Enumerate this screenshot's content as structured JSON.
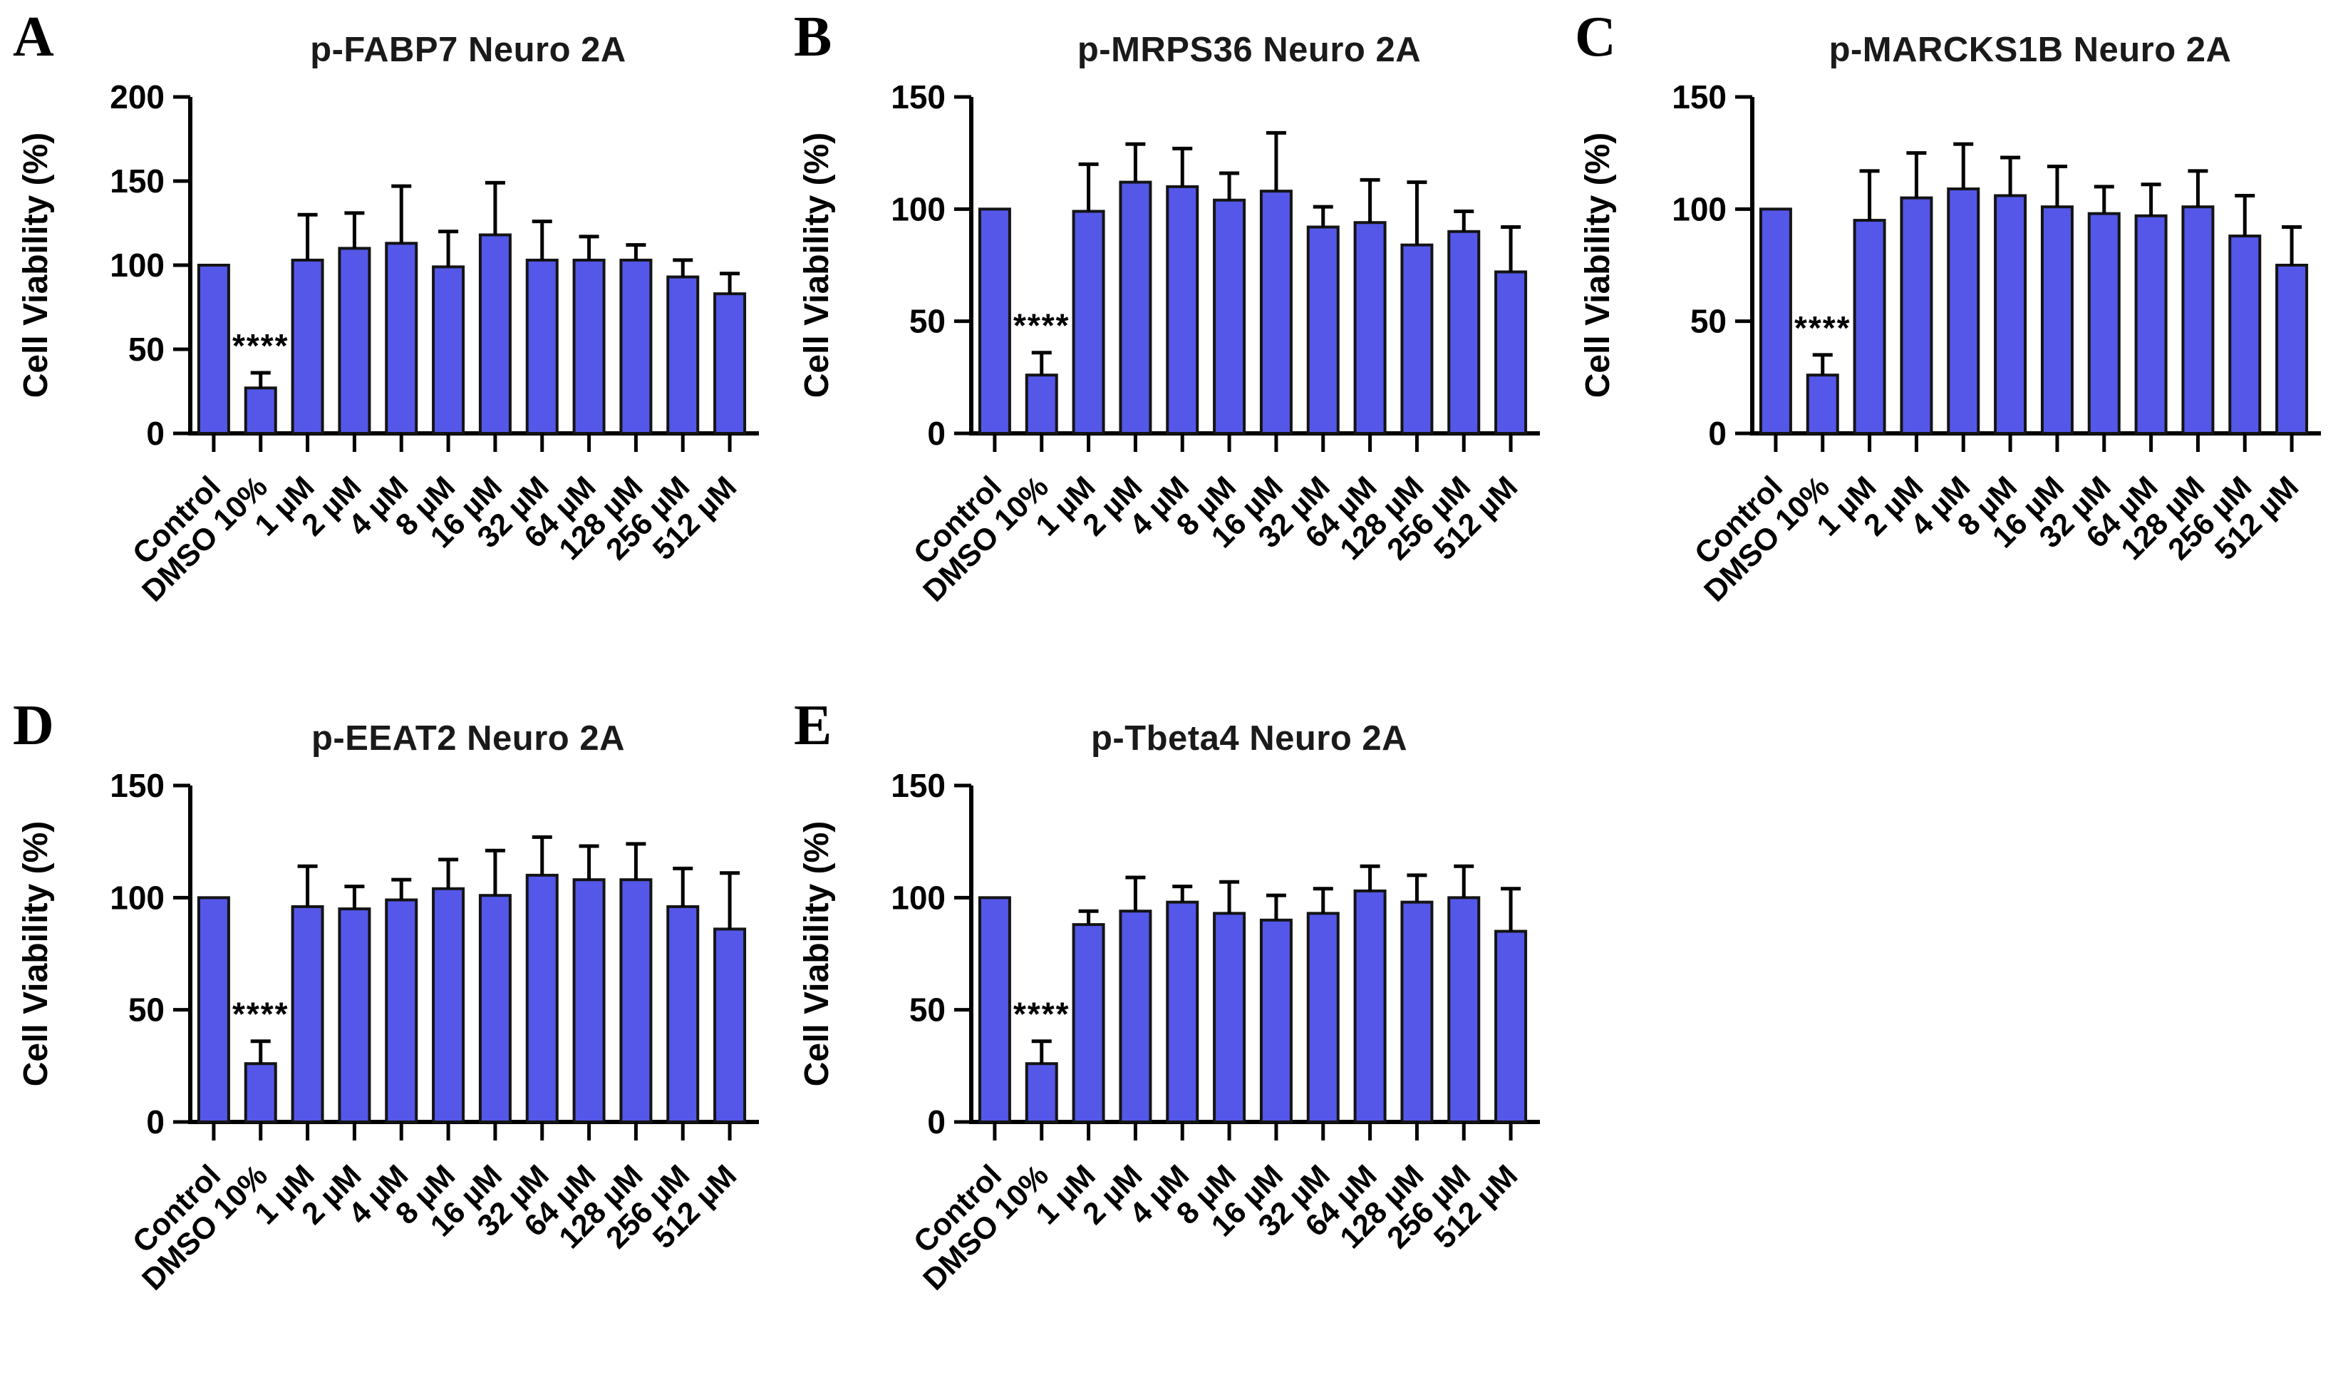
{
  "figure": {
    "y_axis_label": "Cell Viability (%)",
    "bar_fill": "#5457e8",
    "bar_stroke": "#141414",
    "axis_color": "#000000",
    "significance_label": "****",
    "significance_category": "DMSO 10%"
  },
  "categories": [
    "Control",
    "DMSO 10%",
    "1 µM",
    "2 µM",
    "4 µM",
    "8 µM",
    "16 µM",
    "32 µM",
    "64 µM",
    "128 µM",
    "256 µM",
    "512 µM"
  ],
  "chart_data": [
    {
      "panel": "A",
      "type": "bar",
      "title": "p-FABP7 Neuro 2A",
      "ylabel": "Cell Viability (%)",
      "ylim": [
        0,
        200
      ],
      "yticks": [
        0,
        50,
        100,
        150,
        200
      ],
      "values": [
        100,
        27,
        103,
        110,
        113,
        99,
        118,
        103,
        103,
        103,
        93,
        83
      ],
      "errors_upper": [
        0,
        9,
        27,
        21,
        34,
        21,
        31,
        23,
        14,
        9,
        10,
        12
      ],
      "significance_index": 1,
      "legend": "none",
      "grid": false
    },
    {
      "panel": "B",
      "type": "bar",
      "title": "p-MRPS36 Neuro 2A",
      "ylabel": "Cell Viability (%)",
      "ylim": [
        0,
        150
      ],
      "yticks": [
        0,
        50,
        100,
        150
      ],
      "values": [
        100,
        26,
        99,
        112,
        110,
        104,
        108,
        92,
        94,
        84,
        90,
        72
      ],
      "errors_upper": [
        0,
        10,
        21,
        17,
        17,
        12,
        26,
        9,
        19,
        28,
        9,
        20
      ],
      "significance_index": 1,
      "legend": "none",
      "grid": false
    },
    {
      "panel": "C",
      "type": "bar",
      "title": "p-MARCKS1B Neuro 2A",
      "ylabel": "Cell Viability (%)",
      "ylim": [
        0,
        150
      ],
      "yticks": [
        0,
        50,
        100,
        150
      ],
      "values": [
        100,
        26,
        95,
        105,
        109,
        106,
        101,
        98,
        97,
        101,
        88,
        75
      ],
      "errors_upper": [
        0,
        9,
        22,
        20,
        20,
        17,
        18,
        12,
        14,
        16,
        18,
        17
      ],
      "significance_index": 1,
      "legend": "none",
      "grid": false
    },
    {
      "panel": "D",
      "type": "bar",
      "title": "p-EEAT2 Neuro 2A",
      "ylabel": "Cell Viability (%)",
      "ylim": [
        0,
        150
      ],
      "yticks": [
        0,
        50,
        100,
        150
      ],
      "values": [
        100,
        26,
        96,
        95,
        99,
        104,
        101,
        110,
        108,
        108,
        96,
        86
      ],
      "errors_upper": [
        0,
        10,
        18,
        10,
        9,
        13,
        20,
        17,
        15,
        16,
        17,
        25
      ],
      "significance_index": 1,
      "legend": "none",
      "grid": false
    },
    {
      "panel": "E",
      "type": "bar",
      "title": "p-Tbeta4 Neuro 2A",
      "ylabel": "Cell Viability (%)",
      "ylim": [
        0,
        150
      ],
      "yticks": [
        0,
        50,
        100,
        150
      ],
      "values": [
        100,
        26,
        88,
        94,
        98,
        93,
        90,
        93,
        103,
        98,
        100,
        85
      ],
      "errors_upper": [
        0,
        10,
        6,
        15,
        7,
        14,
        11,
        11,
        11,
        12,
        14,
        19
      ],
      "significance_index": 1,
      "legend": "none",
      "grid": false
    }
  ]
}
